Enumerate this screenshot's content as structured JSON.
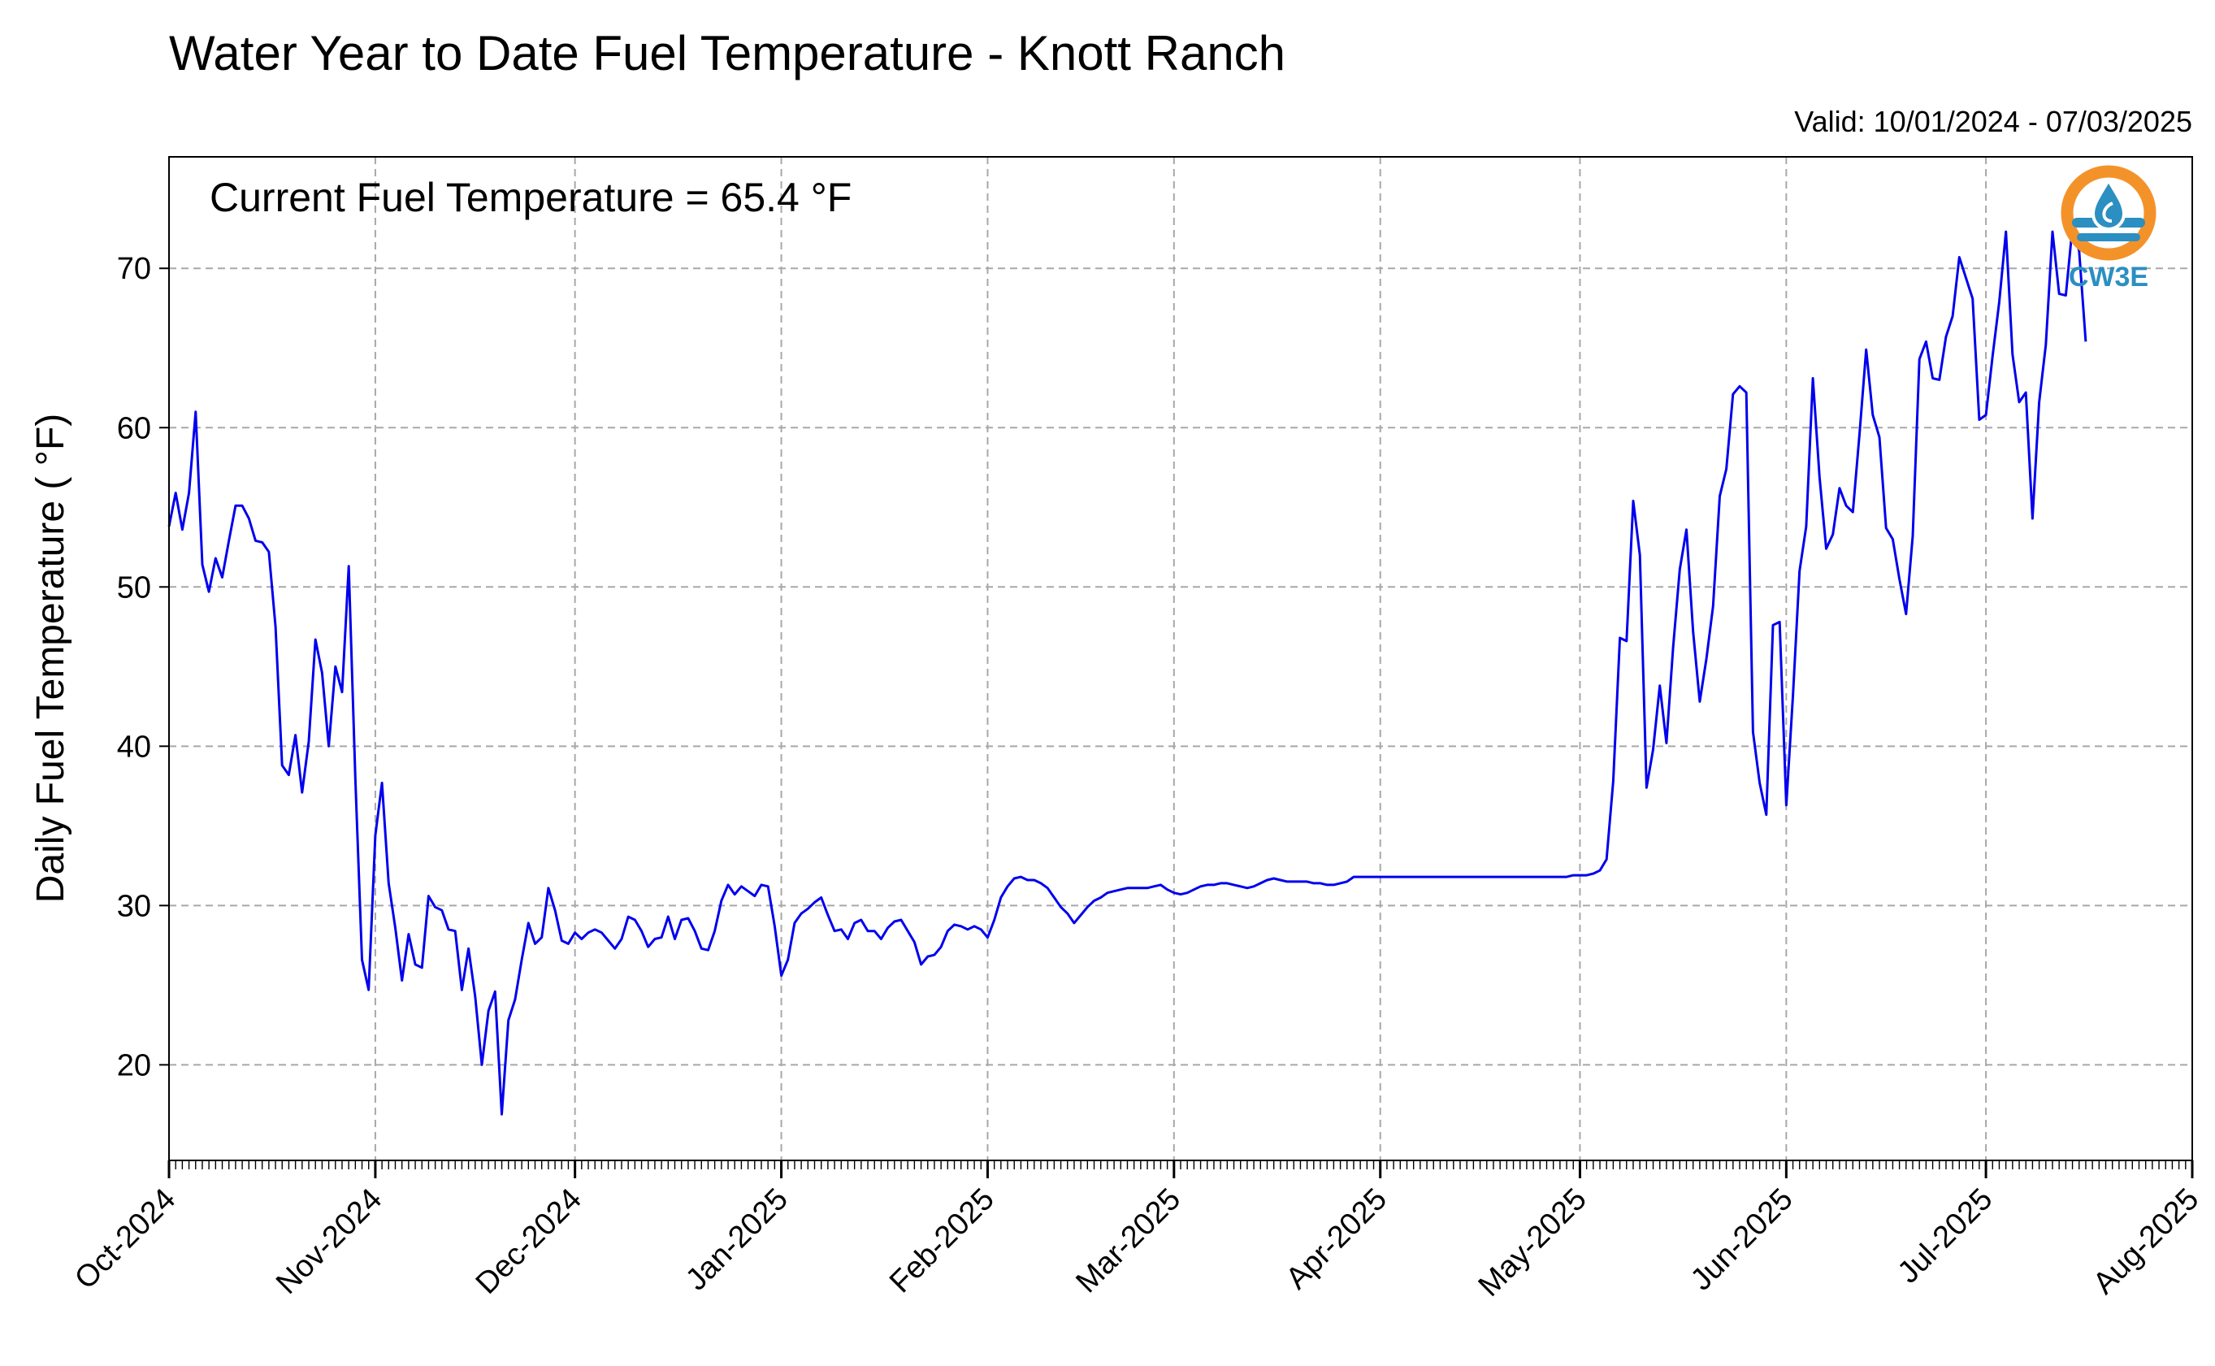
{
  "chart_data": {
    "type": "line",
    "title": "Water Year to Date Fuel Temperature - Knott Ranch",
    "valid": "Valid: 10/01/2024 - 07/03/2025",
    "current_label": "Current Fuel Temperature = 65.4  °F",
    "xlabel": "",
    "ylabel": "Daily Fuel Temperature ( °F)",
    "xlim": [
      "2024-10-01",
      "2025-08-01"
    ],
    "ylim": [
      14,
      77
    ],
    "yticks": [
      20,
      30,
      40,
      50,
      60,
      70
    ],
    "xticks": [
      {
        "date": "2024-10-01",
        "label": "Oct-2024"
      },
      {
        "date": "2024-11-01",
        "label": "Nov-2024"
      },
      {
        "date": "2024-12-01",
        "label": "Dec-2024"
      },
      {
        "date": "2025-01-01",
        "label": "Jan-2025"
      },
      {
        "date": "2025-02-01",
        "label": "Feb-2025"
      },
      {
        "date": "2025-03-01",
        "label": "Mar-2025"
      },
      {
        "date": "2025-04-01",
        "label": "Apr-2025"
      },
      {
        "date": "2025-05-01",
        "label": "May-2025"
      },
      {
        "date": "2025-06-01",
        "label": "Jun-2025"
      },
      {
        "date": "2025-07-01",
        "label": "Jul-2025"
      },
      {
        "date": "2025-08-01",
        "label": "Aug-2025"
      }
    ],
    "grid": true,
    "line_color": "#0000ee",
    "series": [
      {
        "start_date": "2024-10-01",
        "values": [
          53.8,
          55.9,
          53.6,
          55.9,
          61.0,
          51.4,
          49.7,
          51.8,
          50.6,
          52.9,
          55.1,
          55.1,
          54.3,
          52.9,
          52.8,
          52.2,
          47.5,
          38.8,
          38.2,
          40.7,
          37.1,
          40.3,
          46.7,
          44.6,
          40.0,
          45.0,
          43.4,
          51.3,
          38.0,
          26.6,
          24.7,
          34.4,
          37.7,
          31.4,
          28.6,
          25.3,
          28.2,
          26.3,
          26.1,
          30.6,
          29.9,
          29.7,
          28.5,
          28.4,
          24.7,
          27.3,
          24.3,
          20.0,
          23.4,
          24.6,
          16.9,
          22.8,
          24.1,
          26.6,
          28.9,
          27.6,
          28.0,
          31.1,
          29.7,
          27.8,
          27.6,
          28.3,
          27.9,
          28.3,
          28.5,
          28.3,
          27.8,
          27.3,
          27.9,
          29.3,
          29.1,
          28.4,
          27.4,
          27.9,
          28.0,
          29.3,
          27.9,
          29.1,
          29.2,
          28.4,
          27.3,
          27.2,
          28.4,
          30.3,
          31.3,
          30.7,
          31.2,
          30.9,
          30.6,
          31.3,
          31.2,
          28.7,
          25.6,
          26.6,
          28.9,
          29.5,
          29.8,
          30.2,
          30.5,
          29.4,
          28.4,
          28.5,
          27.9,
          28.9,
          29.1,
          28.4,
          28.4,
          27.9,
          28.6,
          29.0,
          29.1,
          28.4,
          27.7,
          26.3,
          26.8,
          26.9,
          27.4,
          28.4,
          28.8,
          28.7,
          28.5,
          28.7,
          28.5,
          28.0,
          29.1,
          30.5,
          31.2,
          31.7,
          31.8,
          31.6,
          31.6,
          31.4,
          31.1,
          30.5,
          29.9,
          29.5,
          28.9,
          29.4,
          29.9,
          30.3,
          30.5,
          30.8,
          30.9,
          31.0,
          31.1,
          31.1,
          31.1,
          31.1,
          31.2,
          31.3,
          31.0,
          30.8,
          30.7,
          30.8,
          31.0,
          31.2,
          31.3,
          31.3,
          31.4,
          31.4,
          31.3,
          31.2,
          31.1,
          31.2,
          31.4,
          31.6,
          31.7,
          31.6,
          31.5,
          31.5,
          31.5,
          31.5,
          31.4,
          31.4,
          31.3,
          31.3,
          31.4,
          31.5,
          31.8,
          31.8,
          31.8,
          31.8,
          31.8,
          31.8,
          31.8,
          31.8,
          31.8,
          31.8,
          31.8,
          31.8,
          31.8,
          31.8,
          31.8,
          31.8,
          31.8,
          31.8,
          31.8,
          31.8,
          31.8,
          31.8,
          31.8,
          31.8,
          31.8,
          31.8,
          31.8,
          31.8,
          31.8,
          31.8,
          31.8,
          31.8,
          31.8,
          31.9,
          31.9,
          31.9,
          32.0,
          32.2,
          32.9,
          37.8,
          46.8,
          46.6,
          55.4,
          52.0,
          37.4,
          39.8,
          43.8,
          40.2,
          46.2,
          51.1,
          53.6,
          47.2,
          42.8,
          45.5,
          48.8,
          55.7,
          57.4,
          62.1,
          62.6,
          62.2,
          40.9,
          37.7,
          35.7,
          47.6,
          47.8,
          36.3,
          43.2,
          51.0,
          53.8,
          63.1,
          56.9,
          52.4,
          53.3,
          56.2,
          55.1,
          54.7,
          59.6,
          64.9,
          60.8,
          59.4,
          53.7,
          53.0,
          50.5,
          48.3,
          53.2,
          64.3,
          65.4,
          63.1,
          63.0,
          65.7,
          67.0,
          70.7,
          69.4,
          68.1,
          60.5,
          60.8,
          64.5,
          67.9,
          72.3,
          64.6,
          61.6,
          62.2,
          54.3,
          61.6,
          65.2,
          72.3,
          68.4,
          68.3,
          72.6,
          71.1,
          65.4
        ]
      }
    ]
  },
  "logo": {
    "text": "CW3E",
    "ring_color": "#f4922a",
    "drop_color": "#2b8fc1",
    "text_color": "#2b8fc1"
  }
}
